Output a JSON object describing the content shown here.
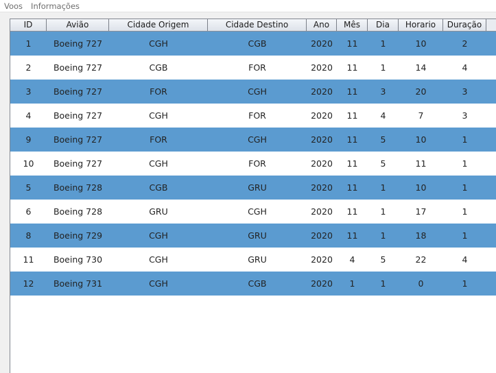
{
  "menu": {
    "items": [
      {
        "label": "Voos"
      },
      {
        "label": "Informações"
      }
    ]
  },
  "table": {
    "columns": [
      "ID",
      "Avião",
      "Cidade Origem",
      "Cidade Destino",
      "Ano",
      "Mês",
      "Dia",
      "Horario",
      "Duração"
    ],
    "rows": [
      [
        "1",
        "Boeing 727",
        "CGH",
        "CGB",
        "2020",
        "11",
        "1",
        "10",
        "2"
      ],
      [
        "2",
        "Boeing 727",
        "CGB",
        "FOR",
        "2020",
        "11",
        "1",
        "14",
        "4"
      ],
      [
        "3",
        "Boeing 727",
        "FOR",
        "CGH",
        "2020",
        "11",
        "3",
        "20",
        "3"
      ],
      [
        "4",
        "Boeing 727",
        "CGH",
        "FOR",
        "2020",
        "11",
        "4",
        "7",
        "3"
      ],
      [
        "9",
        "Boeing 727",
        "FOR",
        "CGH",
        "2020",
        "11",
        "5",
        "10",
        "1"
      ],
      [
        "10",
        "Boeing 727",
        "CGH",
        "FOR",
        "2020",
        "11",
        "5",
        "11",
        "1"
      ],
      [
        "5",
        "Boeing 728",
        "CGB",
        "GRU",
        "2020",
        "11",
        "1",
        "10",
        "1"
      ],
      [
        "6",
        "Boeing 728",
        "GRU",
        "CGH",
        "2020",
        "11",
        "1",
        "17",
        "1"
      ],
      [
        "8",
        "Boeing 729",
        "CGH",
        "GRU",
        "2020",
        "11",
        "1",
        "18",
        "1"
      ],
      [
        "11",
        "Boeing 730",
        "CGH",
        "GRU",
        "2020",
        "4",
        "5",
        "22",
        "4"
      ],
      [
        "12",
        "Boeing 731",
        "CGH",
        "CGB",
        "2020",
        "1",
        "1",
        "0",
        "1"
      ]
    ]
  },
  "colors": {
    "row_highlight": "#5b9bd0",
    "row_plain": "#ffffff"
  }
}
